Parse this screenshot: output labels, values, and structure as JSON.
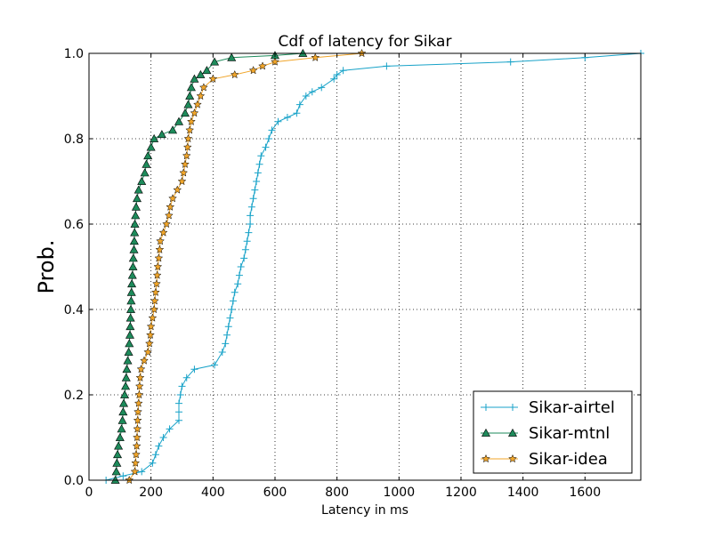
{
  "chart_data": {
    "type": "line",
    "title": "Cdf of latency for Sikar",
    "xlabel": "Latency in ms",
    "ylabel": "Prob.",
    "xlim": [
      0,
      1780
    ],
    "ylim": [
      0,
      1.0
    ],
    "xticks": [
      0,
      200,
      400,
      600,
      800,
      1000,
      1200,
      1400,
      1600
    ],
    "yticks": [
      0.0,
      0.2,
      0.4,
      0.6,
      0.8,
      1.0
    ],
    "xtick_labels": [
      "0",
      "200",
      "400",
      "600",
      "800",
      "1000",
      "1200",
      "1400",
      "1600"
    ],
    "ytick_labels": [
      "0.0",
      "0.2",
      "0.4",
      "0.6",
      "0.8",
      "1.0"
    ],
    "grid": true,
    "legend": {
      "placement": "bottom-right",
      "entries": [
        "Sikar-airtel",
        "Sikar-mtnl",
        "Sikar-idea"
      ]
    },
    "series": [
      {
        "name": "Sikar-airtel",
        "color": "#17a2c8",
        "marker": "plus",
        "points": [
          [
            55,
            0.0
          ],
          [
            110,
            0.01
          ],
          [
            170,
            0.02
          ],
          [
            205,
            0.04
          ],
          [
            215,
            0.06
          ],
          [
            225,
            0.08
          ],
          [
            240,
            0.1
          ],
          [
            260,
            0.12
          ],
          [
            290,
            0.14
          ],
          [
            290,
            0.16
          ],
          [
            290,
            0.18
          ],
          [
            295,
            0.2
          ],
          [
            300,
            0.22
          ],
          [
            315,
            0.24
          ],
          [
            340,
            0.26
          ],
          [
            405,
            0.27
          ],
          [
            430,
            0.3
          ],
          [
            440,
            0.32
          ],
          [
            445,
            0.34
          ],
          [
            450,
            0.36
          ],
          [
            455,
            0.38
          ],
          [
            460,
            0.4
          ],
          [
            465,
            0.42
          ],
          [
            470,
            0.44
          ],
          [
            480,
            0.46
          ],
          [
            485,
            0.48
          ],
          [
            490,
            0.5
          ],
          [
            500,
            0.52
          ],
          [
            505,
            0.54
          ],
          [
            510,
            0.56
          ],
          [
            515,
            0.58
          ],
          [
            520,
            0.6
          ],
          [
            520,
            0.62
          ],
          [
            525,
            0.64
          ],
          [
            530,
            0.66
          ],
          [
            535,
            0.68
          ],
          [
            540,
            0.7
          ],
          [
            545,
            0.72
          ],
          [
            550,
            0.74
          ],
          [
            555,
            0.76
          ],
          [
            570,
            0.78
          ],
          [
            580,
            0.8
          ],
          [
            590,
            0.82
          ],
          [
            610,
            0.84
          ],
          [
            640,
            0.85
          ],
          [
            670,
            0.86
          ],
          [
            680,
            0.88
          ],
          [
            700,
            0.9
          ],
          [
            720,
            0.91
          ],
          [
            750,
            0.92
          ],
          [
            790,
            0.94
          ],
          [
            800,
            0.95
          ],
          [
            820,
            0.96
          ],
          [
            960,
            0.97
          ],
          [
            1360,
            0.98
          ],
          [
            1600,
            0.99
          ],
          [
            1780,
            1.0
          ]
        ]
      },
      {
        "name": "Sikar-mtnl",
        "color": "#1e8b5b",
        "marker": "triangle",
        "points": [
          [
            85,
            0.0
          ],
          [
            88,
            0.02
          ],
          [
            90,
            0.04
          ],
          [
            92,
            0.06
          ],
          [
            95,
            0.08
          ],
          [
            100,
            0.1
          ],
          [
            105,
            0.12
          ],
          [
            108,
            0.14
          ],
          [
            110,
            0.16
          ],
          [
            112,
            0.18
          ],
          [
            115,
            0.2
          ],
          [
            118,
            0.22
          ],
          [
            120,
            0.24
          ],
          [
            122,
            0.26
          ],
          [
            125,
            0.28
          ],
          [
            128,
            0.3
          ],
          [
            130,
            0.32
          ],
          [
            132,
            0.34
          ],
          [
            133,
            0.36
          ],
          [
            134,
            0.38
          ],
          [
            135,
            0.4
          ],
          [
            136,
            0.42
          ],
          [
            137,
            0.44
          ],
          [
            138,
            0.46
          ],
          [
            140,
            0.48
          ],
          [
            142,
            0.5
          ],
          [
            143,
            0.52
          ],
          [
            145,
            0.54
          ],
          [
            146,
            0.56
          ],
          [
            147,
            0.58
          ],
          [
            148,
            0.6
          ],
          [
            150,
            0.62
          ],
          [
            152,
            0.64
          ],
          [
            155,
            0.66
          ],
          [
            160,
            0.68
          ],
          [
            170,
            0.7
          ],
          [
            180,
            0.72
          ],
          [
            185,
            0.74
          ],
          [
            190,
            0.76
          ],
          [
            200,
            0.78
          ],
          [
            210,
            0.8
          ],
          [
            235,
            0.81
          ],
          [
            270,
            0.82
          ],
          [
            290,
            0.84
          ],
          [
            310,
            0.86
          ],
          [
            320,
            0.88
          ],
          [
            325,
            0.9
          ],
          [
            330,
            0.92
          ],
          [
            340,
            0.94
          ],
          [
            360,
            0.95
          ],
          [
            380,
            0.96
          ],
          [
            405,
            0.98
          ],
          [
            460,
            0.99
          ],
          [
            600,
            0.995
          ],
          [
            690,
            1.0
          ]
        ]
      },
      {
        "name": "Sikar-idea",
        "color": "#f0a52a",
        "marker": "star",
        "points": [
          [
            130,
            0.0
          ],
          [
            148,
            0.02
          ],
          [
            150,
            0.04
          ],
          [
            152,
            0.06
          ],
          [
            154,
            0.08
          ],
          [
            155,
            0.1
          ],
          [
            156,
            0.12
          ],
          [
            157,
            0.14
          ],
          [
            158,
            0.16
          ],
          [
            160,
            0.18
          ],
          [
            162,
            0.2
          ],
          [
            163,
            0.22
          ],
          [
            165,
            0.24
          ],
          [
            168,
            0.26
          ],
          [
            178,
            0.28
          ],
          [
            190,
            0.3
          ],
          [
            195,
            0.32
          ],
          [
            198,
            0.34
          ],
          [
            200,
            0.36
          ],
          [
            205,
            0.38
          ],
          [
            210,
            0.4
          ],
          [
            212,
            0.42
          ],
          [
            215,
            0.44
          ],
          [
            218,
            0.46
          ],
          [
            220,
            0.48
          ],
          [
            222,
            0.5
          ],
          [
            225,
            0.52
          ],
          [
            228,
            0.54
          ],
          [
            230,
            0.56
          ],
          [
            240,
            0.58
          ],
          [
            250,
            0.6
          ],
          [
            258,
            0.62
          ],
          [
            262,
            0.64
          ],
          [
            270,
            0.66
          ],
          [
            285,
            0.68
          ],
          [
            300,
            0.7
          ],
          [
            305,
            0.72
          ],
          [
            310,
            0.74
          ],
          [
            315,
            0.76
          ],
          [
            318,
            0.78
          ],
          [
            320,
            0.8
          ],
          [
            325,
            0.82
          ],
          [
            330,
            0.84
          ],
          [
            340,
            0.86
          ],
          [
            350,
            0.88
          ],
          [
            360,
            0.9
          ],
          [
            370,
            0.92
          ],
          [
            400,
            0.94
          ],
          [
            470,
            0.95
          ],
          [
            530,
            0.96
          ],
          [
            560,
            0.97
          ],
          [
            600,
            0.98
          ],
          [
            730,
            0.99
          ],
          [
            880,
            1.0
          ]
        ]
      }
    ]
  }
}
